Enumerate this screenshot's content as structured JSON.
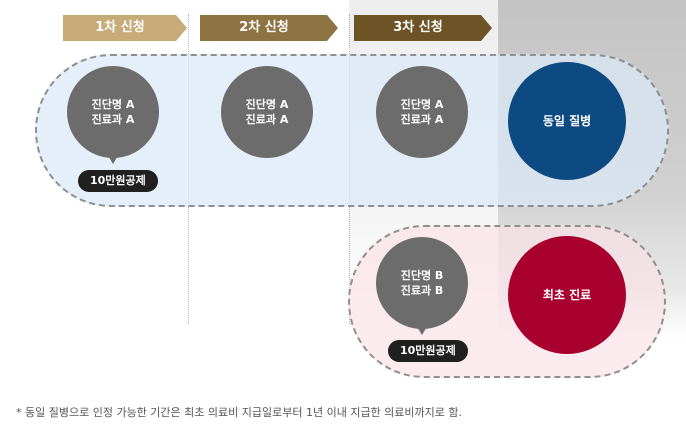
{
  "steps": [
    {
      "label": "1차 신청",
      "color": "#c7ac7a"
    },
    {
      "label": "2차 신청",
      "color": "#8e7443"
    },
    {
      "label": "3차 신청",
      "color": "#6c5427"
    }
  ],
  "group_a": {
    "claims": [
      {
        "line1": "진단명 A",
        "line2": "진료과 A"
      },
      {
        "line1": "진단명 A",
        "line2": "진료과 A"
      },
      {
        "line1": "진단명 A",
        "line2": "진료과 A"
      }
    ],
    "badge": "10만원공제",
    "terminal": "동일 질병",
    "terminal_color": "#0d4a82"
  },
  "group_b": {
    "claim": {
      "line1": "진단명 B",
      "line2": "진료과 B"
    },
    "badge": "10만원공제",
    "terminal": "최초 진료",
    "terminal_color": "#a8002f"
  },
  "footnote": "* 동일 질병으로 인정 가능한 기간은 최초 의료비 지급일로부터 1년 이내 지급한 의료비까지로 함."
}
